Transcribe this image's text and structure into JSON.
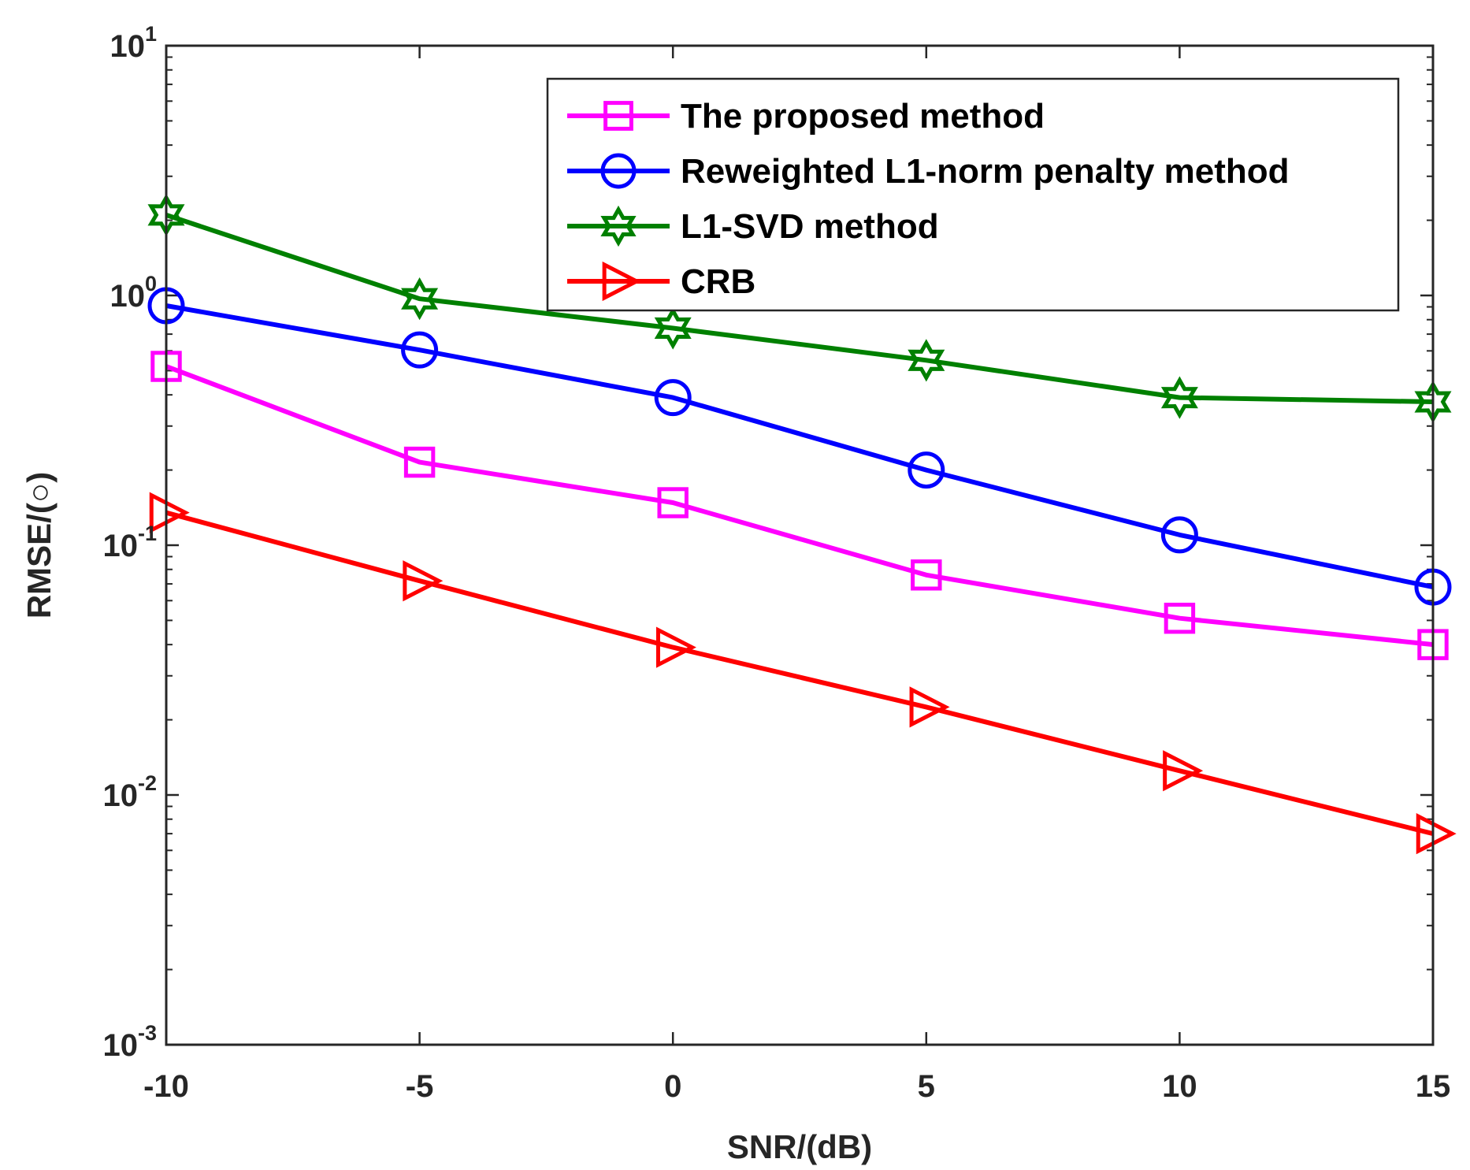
{
  "chart_data": {
    "type": "line",
    "title": "",
    "xlabel": "SNR/(dB)",
    "ylabel": "RMSE/(○)",
    "yscale": "log",
    "xlim": [
      -10,
      15
    ],
    "ylim": [
      0.001,
      10
    ],
    "x": [
      -10,
      -5,
      0,
      5,
      10,
      15
    ],
    "x_tick_labels": [
      "-10",
      "-5",
      "0",
      "5",
      "10",
      "15"
    ],
    "y_ticks": [
      {
        "base": "10",
        "exp": "-3",
        "value": 0.001
      },
      {
        "base": "10",
        "exp": "-2",
        "value": 0.01
      },
      {
        "base": "10",
        "exp": "-1",
        "value": 0.1
      },
      {
        "base": "10",
        "exp": "0",
        "value": 1
      },
      {
        "base": "10",
        "exp": "1",
        "value": 10
      }
    ],
    "grid": false,
    "legend_position": "top-right",
    "series": [
      {
        "name": "The proposed method",
        "color": "#ff00ff",
        "marker": "square",
        "values": [
          0.52,
          0.215,
          0.148,
          0.076,
          0.051,
          0.04
        ]
      },
      {
        "name": "Reweighted L1-norm penalty method",
        "color": "#0000ff",
        "marker": "circle",
        "values": [
          0.91,
          0.605,
          0.39,
          0.2,
          0.11,
          0.068
        ]
      },
      {
        "name": "L1-SVD method",
        "color": "#008000",
        "marker": "hexagram",
        "values": [
          2.1,
          0.97,
          0.74,
          0.55,
          0.39,
          0.375
        ]
      },
      {
        "name": "CRB",
        "color": "#ff0000",
        "marker": "triangle-right",
        "values": [
          0.135,
          0.072,
          0.039,
          0.0225,
          0.0125,
          0.007
        ]
      }
    ]
  }
}
